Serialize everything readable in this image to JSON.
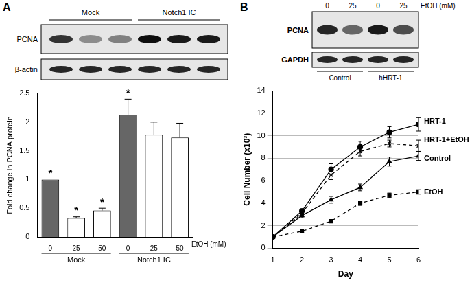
{
  "panels": [
    {
      "label": "A",
      "blot": {
        "group_labels": [
          "Mock",
          "Notch1 IC"
        ],
        "rows": [
          "PCNA",
          "β-actin"
        ]
      }
    },
    {
      "label": "B",
      "blot": {
        "lane_labels": [
          0,
          25,
          0,
          25
        ],
        "lane_unit": "EtOH (mM)",
        "rows": [
          "PCNA",
          "GAPDH"
        ],
        "group_labels": [
          "Control",
          "hHRT-1"
        ]
      }
    }
  ],
  "chart_data": [
    {
      "type": "bar",
      "categories": [
        "0",
        "25",
        "50",
        "0",
        "25",
        "50"
      ],
      "groups": [
        "Mock",
        "Mock",
        "Mock",
        "Notch1 IC",
        "Notch1 IC",
        "Notch1 IC"
      ],
      "values": [
        1.0,
        0.33,
        0.46,
        2.13,
        1.78,
        1.73
      ],
      "errors": [
        0,
        0.02,
        0.04,
        0.27,
        0.22,
        0.25
      ],
      "annotations": [
        "*",
        "*",
        "*",
        "*",
        null,
        null
      ],
      "colors": [
        "#666666",
        "#ffffff",
        "#ffffff",
        "#666666",
        "#ffffff",
        "#ffffff"
      ],
      "x_label": "EtOH (mM)",
      "y_label": "Fold change in PCNA protein",
      "ylim": [
        0,
        2.5
      ],
      "yticks": [
        0,
        0.5,
        1,
        1.5,
        2,
        2.5
      ],
      "grid": false
    },
    {
      "type": "line",
      "x": [
        1,
        2,
        3,
        4,
        5,
        6
      ],
      "series": [
        {
          "name": "HRT-1",
          "color": "#000000",
          "line_style": "solid",
          "marker": "circle",
          "values": [
            1,
            3.3,
            7.0,
            9.0,
            10.3,
            11.0
          ],
          "errors": [
            0,
            0.2,
            0.5,
            0.5,
            0.5,
            0.6
          ]
        },
        {
          "name": "HRT-1+EtOH",
          "color": "#000000",
          "line_style": "dashed",
          "marker": "x",
          "values": [
            1,
            3.1,
            6.5,
            8.6,
            9.3,
            9.1
          ],
          "errors": [
            0,
            0.2,
            0.4,
            0.4,
            0.3,
            0.5
          ]
        },
        {
          "name": "Control",
          "color": "#000000",
          "line_style": "solid",
          "marker": "triangle",
          "values": [
            1,
            2.9,
            4.3,
            5.4,
            7.7,
            8.2
          ],
          "errors": [
            0,
            0.2,
            0.3,
            0.3,
            0.4,
            0.4
          ]
        },
        {
          "name": "EtOH",
          "color": "#000000",
          "line_style": "dashed",
          "marker": "square",
          "values": [
            1,
            1.5,
            2.4,
            4.0,
            4.7,
            5.0
          ],
          "errors": [
            0,
            0.1,
            0.1,
            0.2,
            0.2,
            0.2
          ]
        }
      ],
      "x_label": "Day",
      "y_label": "Cell Number (x10³)",
      "xlim": [
        1,
        6
      ],
      "xticks": [
        1,
        2,
        3,
        4,
        5,
        6
      ],
      "ylim": [
        0,
        14
      ],
      "yticks": [
        0,
        2,
        4,
        6,
        8,
        10,
        12,
        14
      ],
      "grid": true
    }
  ]
}
